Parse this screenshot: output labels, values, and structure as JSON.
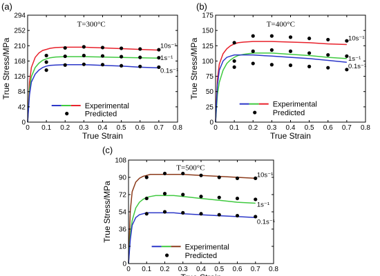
{
  "chart_data": [
    {
      "type": "line",
      "panel_label": "(a)",
      "annotation": "T=300°C",
      "xlabel": "True Strain",
      "ylabel": "True Stress/MPa",
      "xlim": [
        0,
        0.8
      ],
      "ylim": [
        0,
        294
      ],
      "xticks": [
        0,
        0.1,
        0.2,
        0.3,
        0.4,
        0.5,
        0.6,
        0.7,
        0.8
      ],
      "yticks": [
        0,
        42,
        84,
        126,
        168,
        210,
        252,
        294
      ],
      "xtick_labels": [
        "0",
        "0.1",
        "0.2",
        "0.3",
        "0.4",
        "0.5",
        "0.6",
        "0.7",
        "0.8"
      ],
      "ytick_labels": [
        "0",
        "42",
        "84",
        "126",
        "168",
        "210",
        "252",
        "294"
      ],
      "legend": {
        "placement": "bottom-center",
        "experimental_label": "Experimental",
        "predicted_label": "Predicted"
      },
      "series": [
        {
          "name": "10s⁻¹",
          "color": "#e8202a",
          "x": [
            0,
            0.01,
            0.02,
            0.04,
            0.06,
            0.08,
            0.1,
            0.12,
            0.15,
            0.2,
            0.25,
            0.3,
            0.4,
            0.5,
            0.6,
            0.7
          ],
          "y": [
            0,
            110,
            150,
            178,
            190,
            197,
            200,
            203,
            205,
            206,
            206,
            206,
            204,
            202,
            200,
            198
          ],
          "predicted_x": [
            0.1,
            0.2,
            0.3,
            0.4,
            0.5,
            0.6,
            0.7
          ],
          "predicted_y": [
            183,
            204,
            207,
            205,
            203,
            201,
            199
          ]
        },
        {
          "name": "1s⁻¹",
          "color": "#3ec93e",
          "x": [
            0,
            0.01,
            0.02,
            0.04,
            0.06,
            0.08,
            0.1,
            0.12,
            0.15,
            0.2,
            0.25,
            0.3,
            0.4,
            0.5,
            0.6,
            0.7
          ],
          "y": [
            0,
            90,
            125,
            150,
            162,
            170,
            174,
            177,
            179,
            180,
            180,
            180,
            179,
            178,
            177,
            176
          ],
          "predicted_x": [
            0.1,
            0.2,
            0.3,
            0.4,
            0.5,
            0.6,
            0.7
          ],
          "predicted_y": [
            165,
            181,
            183,
            182,
            180,
            178,
            177
          ]
        },
        {
          "name": "0.1s⁻¹",
          "color": "#2a35c8",
          "x": [
            0,
            0.01,
            0.02,
            0.04,
            0.06,
            0.08,
            0.1,
            0.12,
            0.15,
            0.2,
            0.25,
            0.3,
            0.4,
            0.5,
            0.6,
            0.7
          ],
          "y": [
            0,
            75,
            110,
            132,
            143,
            150,
            154,
            156,
            157,
            158,
            158,
            158,
            156,
            154,
            151,
            149
          ],
          "predicted_x": [
            0.1,
            0.2,
            0.3,
            0.4,
            0.5,
            0.6,
            0.7
          ],
          "predicted_y": [
            143,
            157,
            159,
            158,
            155,
            153,
            151
          ]
        }
      ]
    },
    {
      "type": "line",
      "panel_label": "(b)",
      "annotation": "T=400°C",
      "xlabel": "True Strain",
      "ylabel": "True Stress/MPa",
      "xlim": [
        0,
        0.8
      ],
      "ylim": [
        0,
        175
      ],
      "xticks": [
        0,
        0.1,
        0.2,
        0.3,
        0.4,
        0.5,
        0.6,
        0.7,
        0.8
      ],
      "yticks": [
        0,
        25,
        50,
        75,
        100,
        125,
        150,
        175
      ],
      "xtick_labels": [
        "0",
        "0.1",
        "0.2",
        "0.3",
        "0.4",
        "0.5",
        "0.6",
        "0.7",
        "0.8"
      ],
      "ytick_labels": [
        "0",
        "25",
        "50",
        "75",
        "100",
        "125",
        "150",
        "175"
      ],
      "legend": {
        "placement": "bottom-center",
        "experimental_label": "Experimental",
        "predicted_label": "Predicted"
      },
      "series": [
        {
          "name": "10s⁻¹",
          "color": "#e8202a",
          "x": [
            0,
            0.01,
            0.02,
            0.04,
            0.06,
            0.08,
            0.1,
            0.12,
            0.15,
            0.2,
            0.25,
            0.3,
            0.4,
            0.5,
            0.6,
            0.7
          ],
          "y": [
            0,
            70,
            95,
            112,
            120,
            125,
            128,
            130,
            131,
            132,
            132,
            132,
            131,
            130,
            128,
            127
          ],
          "predicted_x": [
            0.1,
            0.2,
            0.3,
            0.4,
            0.5,
            0.6,
            0.7
          ],
          "predicted_y": [
            130,
            141,
            141,
            139,
            137,
            135,
            133
          ]
        },
        {
          "name": "1s⁻¹",
          "color": "#3ec93e",
          "x": [
            0,
            0.01,
            0.02,
            0.04,
            0.06,
            0.08,
            0.1,
            0.12,
            0.15,
            0.2,
            0.25,
            0.3,
            0.4,
            0.5,
            0.6,
            0.7
          ],
          "y": [
            0,
            45,
            65,
            85,
            96,
            102,
            106,
            109,
            111,
            113,
            113,
            113,
            111,
            109,
            106,
            104
          ],
          "predicted_x": [
            0.1,
            0.2,
            0.3,
            0.4,
            0.5,
            0.6,
            0.7
          ],
          "predicted_y": [
            100,
            116,
            118,
            116,
            113,
            110,
            108
          ]
        },
        {
          "name": "0.1s⁻¹",
          "color": "#2a35c8",
          "x": [
            0,
            0.01,
            0.02,
            0.04,
            0.06,
            0.08,
            0.1,
            0.12,
            0.15,
            0.2,
            0.25,
            0.3,
            0.4,
            0.5,
            0.6,
            0.7
          ],
          "y": [
            0,
            60,
            85,
            100,
            106,
            108,
            110,
            110,
            110,
            110,
            109,
            108,
            106,
            104,
            101,
            98
          ],
          "predicted_x": [
            0.1,
            0.2,
            0.3,
            0.4,
            0.5,
            0.6,
            0.7
          ],
          "predicted_y": [
            90,
            96,
            94,
            93,
            91,
            89,
            86
          ]
        }
      ]
    },
    {
      "type": "line",
      "panel_label": "(c)",
      "annotation": "T=500°C",
      "xlabel": "True Strain",
      "ylabel": "True Stress/MPa",
      "xlim": [
        0,
        0.8
      ],
      "ylim": [
        0,
        108
      ],
      "xticks": [
        0,
        0.1,
        0.2,
        0.3,
        0.4,
        0.5,
        0.6,
        0.7,
        0.8
      ],
      "yticks": [
        0,
        18,
        36,
        54,
        72,
        90,
        108
      ],
      "xtick_labels": [
        "0",
        "0.1",
        "0.2",
        "0.3",
        "0.4",
        "0.5",
        "0.6",
        "0.7",
        "0.8"
      ],
      "ytick_labels": [
        "0",
        "18",
        "36",
        "54",
        "72",
        "90",
        "108"
      ],
      "legend": {
        "placement": "bottom-center",
        "experimental_label": "Experimental",
        "predicted_label": "Predicted"
      },
      "series": [
        {
          "name": "10s⁻¹",
          "color": "#8b3a1a",
          "x": [
            0,
            0.01,
            0.02,
            0.04,
            0.06,
            0.08,
            0.1,
            0.12,
            0.15,
            0.2,
            0.25,
            0.3,
            0.4,
            0.5,
            0.6,
            0.7
          ],
          "y": [
            0,
            55,
            75,
            85,
            89,
            91,
            92,
            93,
            93,
            93,
            93,
            93,
            92,
            91,
            90,
            89
          ],
          "predicted_x": [
            0.1,
            0.2,
            0.3,
            0.4,
            0.5,
            0.6,
            0.7
          ],
          "predicted_y": [
            90,
            94,
            94,
            92,
            90,
            89,
            89
          ]
        },
        {
          "name": "1s⁻¹",
          "color": "#3ec93e",
          "x": [
            0,
            0.01,
            0.02,
            0.04,
            0.06,
            0.08,
            0.1,
            0.12,
            0.15,
            0.2,
            0.25,
            0.3,
            0.4,
            0.5,
            0.6,
            0.7
          ],
          "y": [
            0,
            30,
            45,
            58,
            64,
            67,
            69,
            70,
            71,
            71,
            71,
            70,
            68,
            66,
            64,
            63
          ],
          "predicted_x": [
            0.1,
            0.2,
            0.3,
            0.4,
            0.5,
            0.6,
            0.7
          ],
          "predicted_y": [
            68,
            73,
            72,
            70,
            69,
            68,
            67
          ]
        },
        {
          "name": "0.1s⁻¹",
          "color": "#2a35c8",
          "x": [
            0,
            0.01,
            0.02,
            0.04,
            0.06,
            0.08,
            0.1,
            0.12,
            0.15,
            0.2,
            0.25,
            0.3,
            0.4,
            0.5,
            0.6,
            0.7
          ],
          "y": [
            0,
            25,
            40,
            48,
            51,
            52,
            53,
            53,
            53,
            53,
            53,
            52,
            51,
            50,
            49,
            48
          ],
          "predicted_x": [
            0.1,
            0.2,
            0.3,
            0.4,
            0.5,
            0.6,
            0.7
          ],
          "predicted_y": [
            52,
            54,
            53,
            52,
            51,
            50,
            49
          ]
        }
      ]
    }
  ]
}
